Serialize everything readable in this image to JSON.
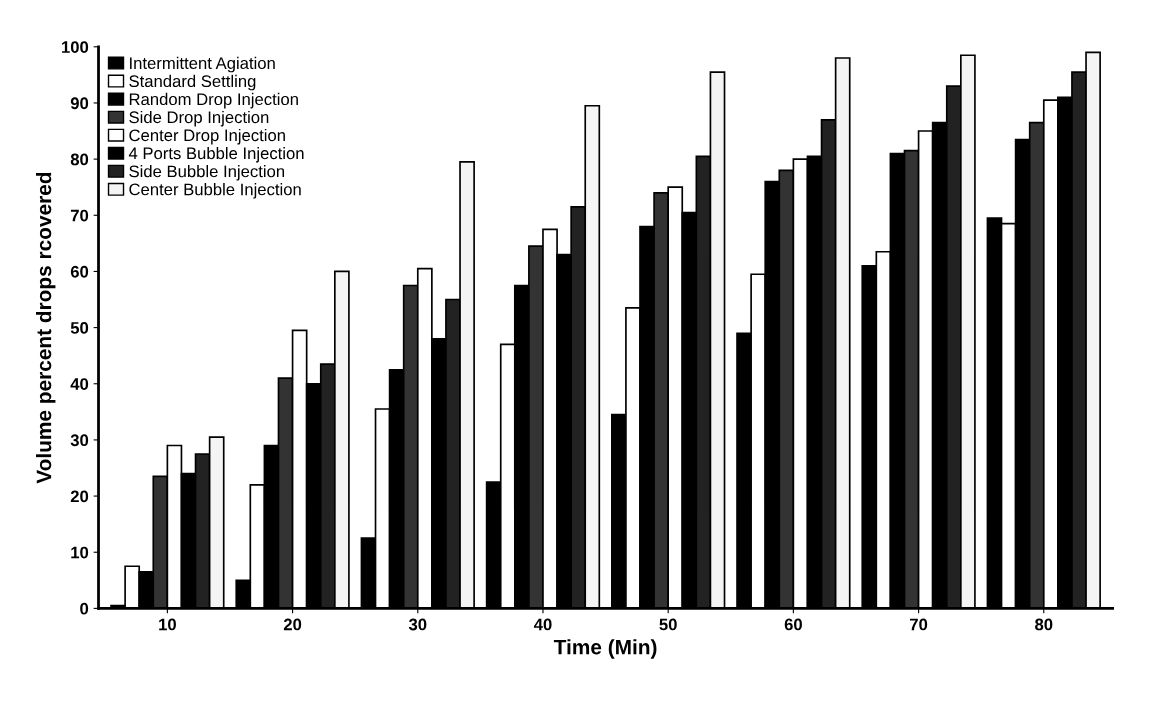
{
  "chart_data": {
    "type": "bar",
    "xlabel": "Time (Min)",
    "ylabel": "Volume percent drops rcovered",
    "categories": [
      "10",
      "20",
      "30",
      "40",
      "50",
      "60",
      "70",
      "80"
    ],
    "series": [
      {
        "name": "Intermittent Agiation",
        "color": "#000000",
        "values": [
          0.5,
          5,
          12.5,
          22.5,
          34.5,
          49,
          61,
          69.5
        ]
      },
      {
        "name": "Standard Settling",
        "color": "#ffffff",
        "values": [
          7.5,
          22,
          35.5,
          47,
          53.5,
          59.5,
          63.5,
          68.5
        ]
      },
      {
        "name": "Random Drop Injection",
        "color": "#000000",
        "values": [
          6.5,
          29,
          42.5,
          57.5,
          68,
          76,
          81,
          83.5
        ]
      },
      {
        "name": "Side Drop Injection",
        "color": "#333333",
        "values": [
          23.5,
          41,
          57.5,
          64.5,
          74,
          78,
          81.5,
          86.5
        ]
      },
      {
        "name": "Center Drop Injection",
        "color": "#ffffff",
        "values": [
          29,
          49.5,
          60.5,
          67.5,
          75,
          80,
          85,
          90.5
        ]
      },
      {
        "name": "4 Ports Bubble Injection",
        "color": "#000000",
        "values": [
          24,
          40,
          48,
          63,
          70.5,
          80.5,
          86.5,
          91
        ]
      },
      {
        "name": "Side Bubble Injection",
        "color": "#222222",
        "values": [
          27.5,
          43.5,
          55,
          71.5,
          80.5,
          87,
          93,
          95.5
        ]
      },
      {
        "name": "Center Bubble Injection",
        "color": "#f4f4f4",
        "values": [
          30.5,
          60,
          79.5,
          89.5,
          95.5,
          98,
          98.5,
          99
        ]
      }
    ],
    "ylim": [
      0,
      100
    ],
    "yticks": [
      0,
      10,
      20,
      30,
      40,
      50,
      60,
      70,
      80,
      90,
      100
    ],
    "grid": false,
    "legend": "top left"
  }
}
